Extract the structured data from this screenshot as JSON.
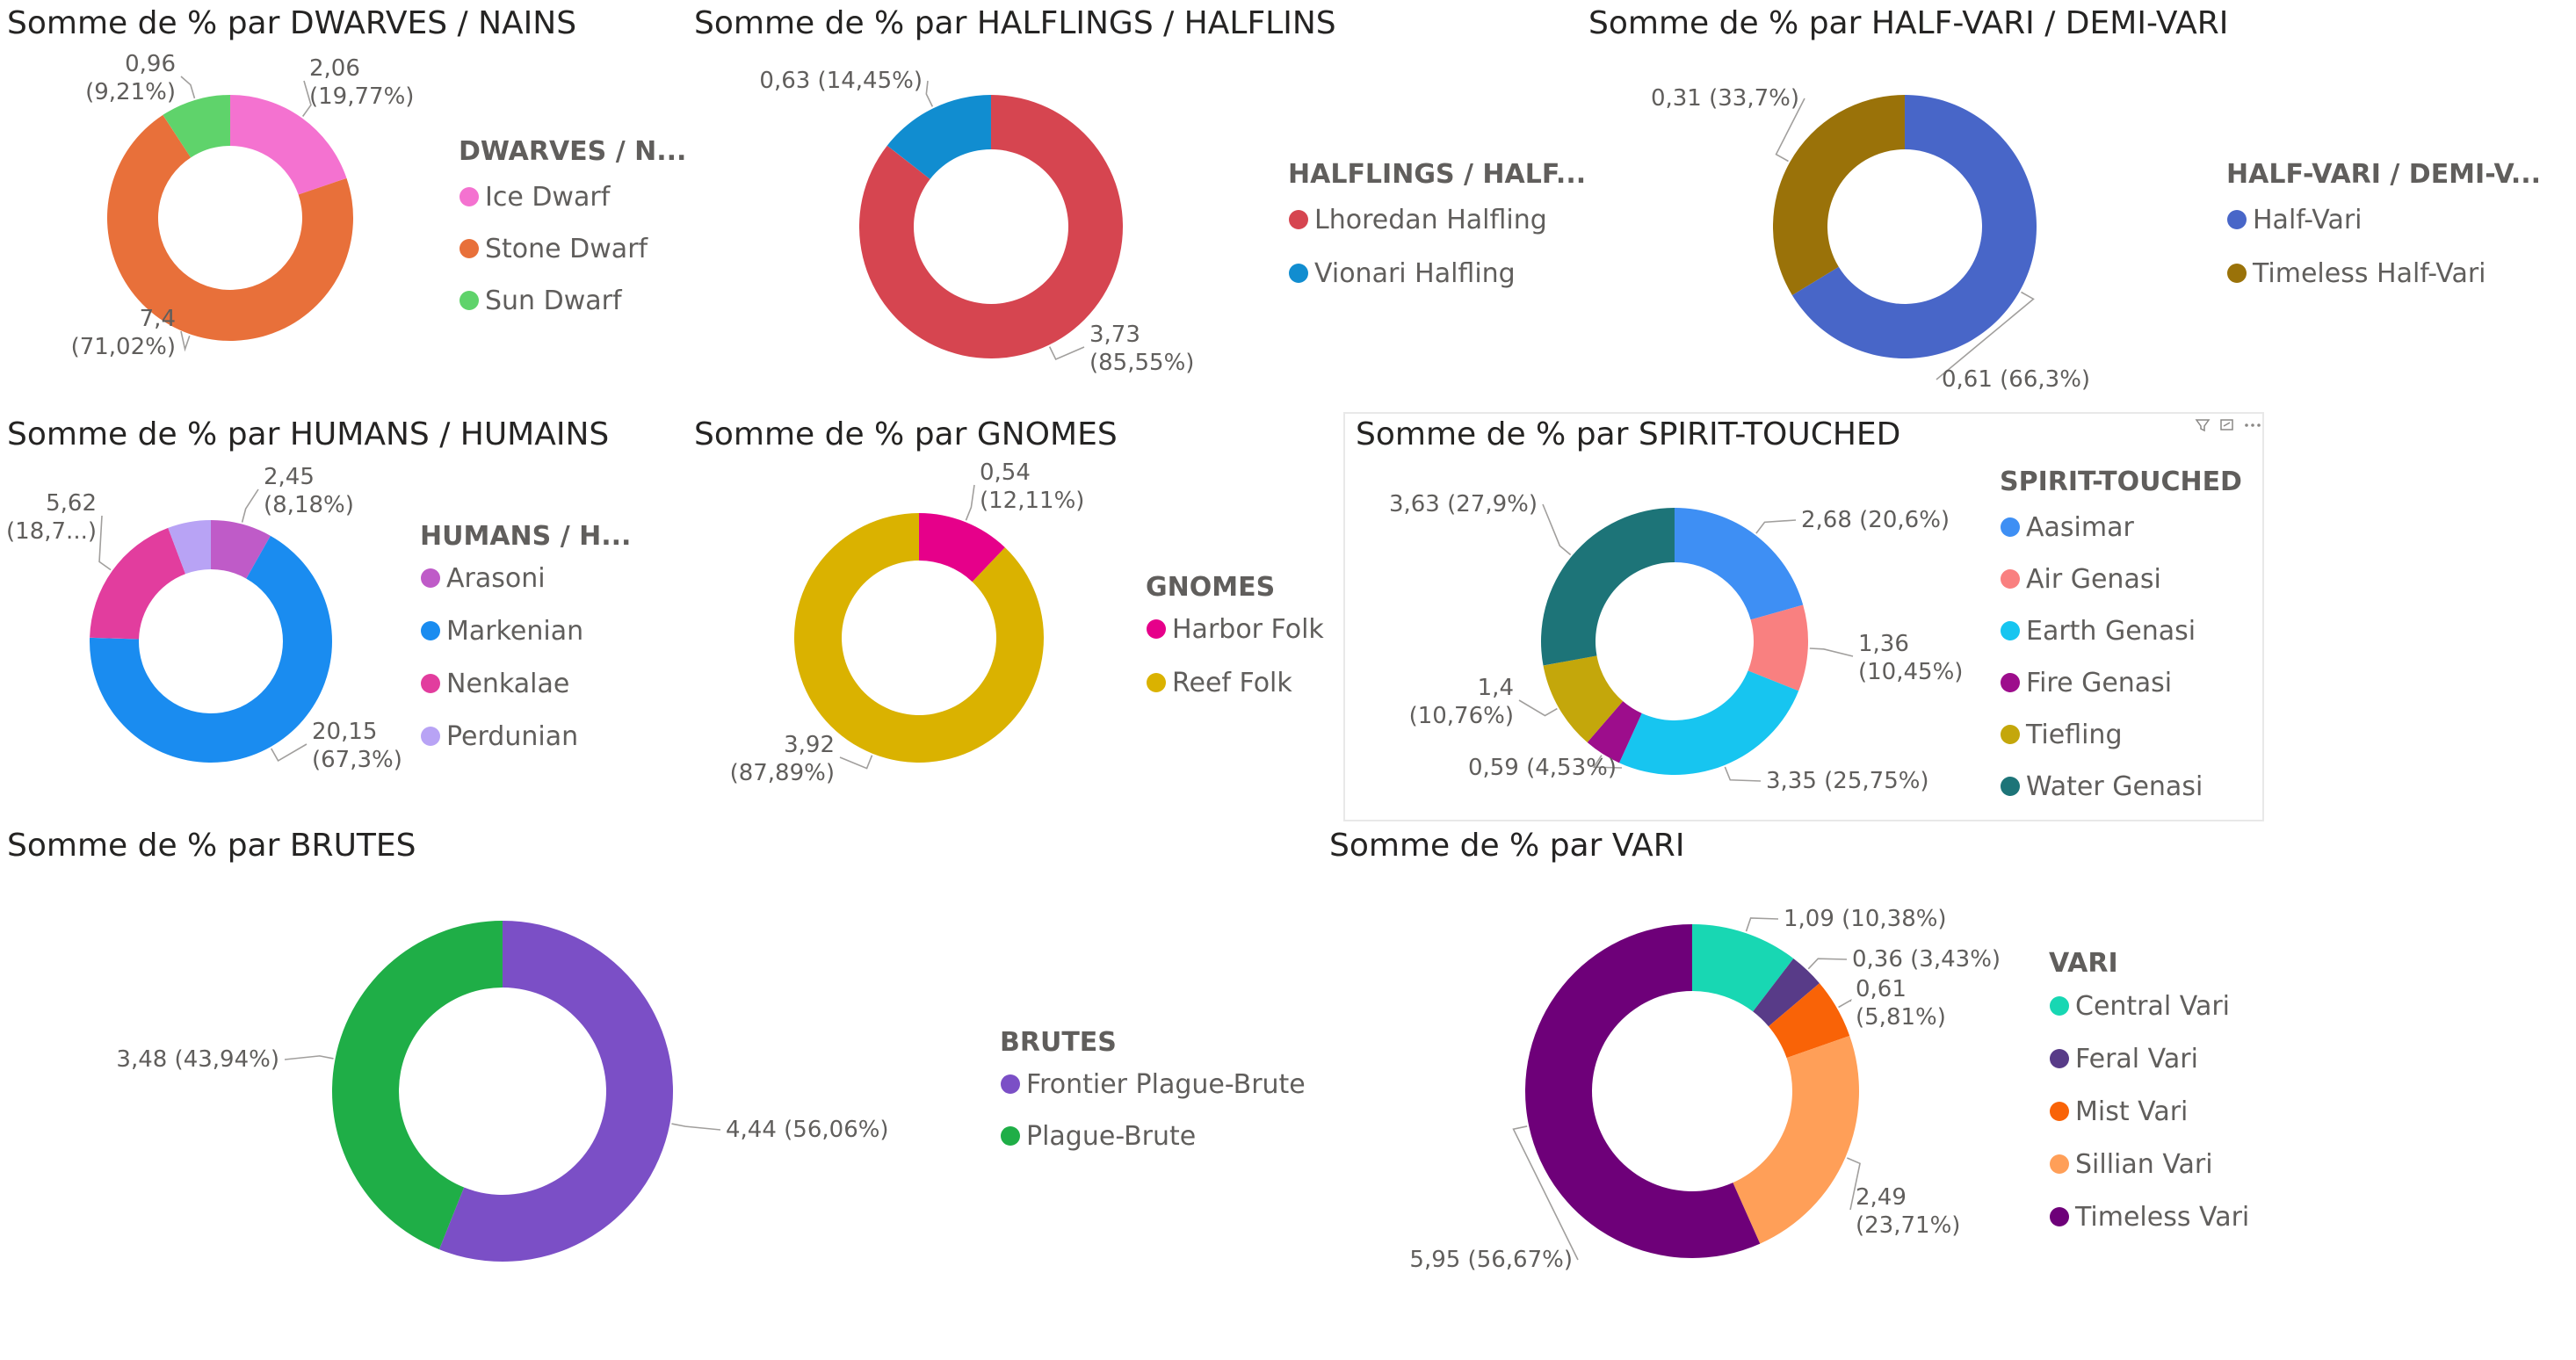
{
  "page": {
    "background": "#ffffff"
  },
  "chart_data": [
    {
      "type": "pie",
      "donut": true,
      "title": "Somme de % par DWARVES / NAINS",
      "legend_title": "DWARVES / N...",
      "legend_placement": "right",
      "slices": [
        {
          "name": "Ice Dwarf",
          "value": 2.06,
          "percent": "19,77%",
          "label": [
            "2,06",
            "(19,77%)"
          ],
          "color": "#f472d0"
        },
        {
          "name": "Stone Dwarf",
          "value": 7.4,
          "percent": "71,02%",
          "label": [
            "7,4",
            "(71,02%)"
          ],
          "color": "#e8703a"
        },
        {
          "name": "Sun Dwarf",
          "value": 0.96,
          "percent": "9,21%",
          "label": [
            "0,96",
            "(9,21%)"
          ],
          "color": "#5fd36b"
        }
      ]
    },
    {
      "type": "pie",
      "donut": true,
      "title": "Somme de % par HALFLINGS / HALFLINS",
      "legend_title": "HALFLINGS / HALF...",
      "legend_placement": "right",
      "slices": [
        {
          "name": "Lhoredan Halfling",
          "value": 3.73,
          "percent": "85,55%",
          "label": [
            "3,73",
            "(85,55%)"
          ],
          "color": "#d64550"
        },
        {
          "name": "Vionari Halfling",
          "value": 0.63,
          "percent": "14,45%",
          "label": [
            "0,63 (14,45%)"
          ],
          "color": "#118dd0"
        }
      ]
    },
    {
      "type": "pie",
      "donut": true,
      "title": "Somme de % par HALF-VARI / DEMI-VARI",
      "legend_title": "HALF-VARI  / DEMI-V...",
      "legend_placement": "right",
      "slices": [
        {
          "name": "Half-Vari",
          "value": 0.61,
          "percent": "66,3%",
          "label": [
            "0,61 (66,3%)"
          ],
          "color": "#4866c8"
        },
        {
          "name": "Timeless Half-Vari",
          "value": 0.31,
          "percent": "33,7%",
          "label": [
            "0,31 (33,7%)"
          ],
          "color": "#9a7209"
        }
      ]
    },
    {
      "type": "pie",
      "donut": true,
      "title": "Somme de % par HUMANS / HUMAINS",
      "legend_title": "HUMANS / H...",
      "legend_placement": "right",
      "slices": [
        {
          "name": "Arasoni",
          "value": 2.45,
          "percent": "8,18%",
          "label": [
            "2,45",
            "(8,18%)"
          ],
          "color": "#bf5bc8"
        },
        {
          "name": "Markenian",
          "value": 20.15,
          "percent": "67,3%",
          "label": [
            "20,15",
            "(67,3%)"
          ],
          "color": "#1a8cf0"
        },
        {
          "name": "Nenkalae",
          "value": 5.62,
          "percent": "18,7...",
          "label": [
            "5,62",
            "(18,7...)"
          ],
          "color": "#e23d9e"
        },
        {
          "name": "Perdunian",
          "value": 1.72,
          "label": [],
          "color": "#b8a3f5"
        }
      ]
    },
    {
      "type": "pie",
      "donut": true,
      "title": "Somme de % par GNOMES",
      "legend_title": "GNOMES",
      "legend_placement": "right",
      "slices": [
        {
          "name": "Harbor Folk",
          "value": 0.54,
          "percent": "12,11%",
          "label": [
            "0,54",
            "(12,11%)"
          ],
          "color": "#e6008a"
        },
        {
          "name": "Reef Folk",
          "value": 3.92,
          "percent": "87,89%",
          "label": [
            "3,92",
            "(87,89%)"
          ],
          "color": "#dab200"
        }
      ]
    },
    {
      "type": "pie",
      "donut": true,
      "title": "Somme de % par SPIRIT-TOUCHED",
      "legend_title": "SPIRIT-TOUCHED",
      "legend_placement": "right",
      "slices": [
        {
          "name": "Aasimar",
          "value": 2.68,
          "percent": "20,6%",
          "label": [
            "2,68 (20,6%)"
          ],
          "color": "#3e8ff4"
        },
        {
          "name": "Air Genasi",
          "value": 1.36,
          "percent": "10,45%",
          "label": [
            "1,36",
            "(10,45%)"
          ],
          "color": "#f98080"
        },
        {
          "name": "Earth Genasi",
          "value": 3.35,
          "percent": "25,75%",
          "label": [
            "3,35 (25,75%)"
          ],
          "color": "#17c5f0"
        },
        {
          "name": "Fire Genasi",
          "value": 0.59,
          "percent": "4,53%",
          "label": [
            "0,59 (4,53%)"
          ],
          "color": "#9d0d8c"
        },
        {
          "name": "Tiefling",
          "value": 1.4,
          "percent": "10,76%",
          "label": [
            "1,4",
            "(10,76%)"
          ],
          "color": "#c4a70b"
        },
        {
          "name": "Water Genasi",
          "value": 3.63,
          "percent": "27,9%",
          "label": [
            "3,63 (27,9%)"
          ],
          "color": "#1d7478"
        }
      ]
    },
    {
      "type": "pie",
      "donut": true,
      "title": "Somme de % par BRUTES",
      "legend_title": "BRUTES",
      "legend_placement": "right",
      "slices": [
        {
          "name": "Frontier Plague-Brute",
          "value": 4.44,
          "percent": "56,06%",
          "label": [
            "4,44 (56,06%)"
          ],
          "color": "#7b4fc6"
        },
        {
          "name": "Plague-Brute",
          "value": 3.48,
          "percent": "43,94%",
          "label": [
            "3,48 (43,94%)"
          ],
          "color": "#1fae47"
        }
      ]
    },
    {
      "type": "pie",
      "donut": true,
      "title": "Somme de % par VARI",
      "legend_title": "VARI",
      "legend_placement": "right",
      "slices": [
        {
          "name": "Central Vari",
          "value": 1.09,
          "percent": "10,38%",
          "label": [
            "1,09 (10,38%)"
          ],
          "color": "#18d7b3"
        },
        {
          "name": "Feral Vari",
          "value": 0.36,
          "percent": "3,43%",
          "label": [
            "0,36 (3,43%)"
          ],
          "color": "#583b88"
        },
        {
          "name": "Mist Vari",
          "value": 0.61,
          "percent": "5,81%",
          "label": [
            "0,61",
            "(5,81%)"
          ],
          "color": "#f96307"
        },
        {
          "name": "Sillian Vari",
          "value": 2.49,
          "percent": "23,71%",
          "label": [
            "2,49",
            "(23,71%)"
          ],
          "color": "#ff9f58"
        },
        {
          "name": "Timeless Vari",
          "value": 5.95,
          "percent": "56,67%",
          "label": [
            "5,95 (56,67%)"
          ],
          "color": "#6e0079"
        }
      ]
    }
  ]
}
